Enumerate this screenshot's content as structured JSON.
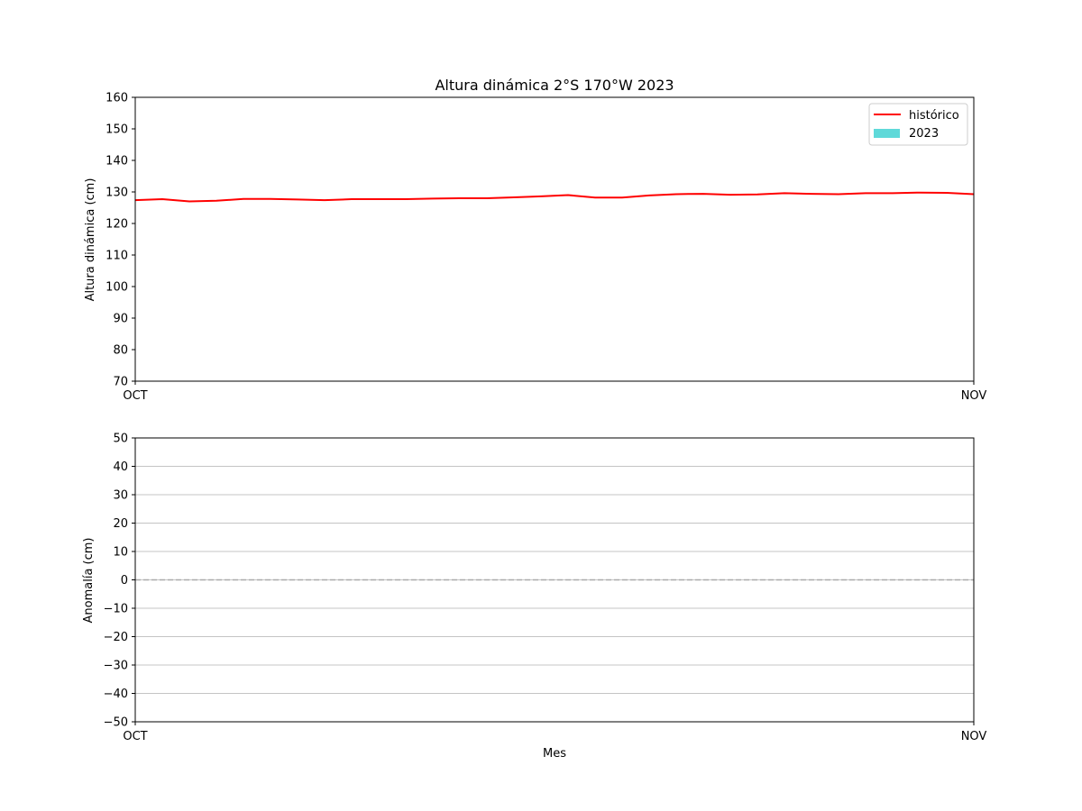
{
  "chart_data": [
    {
      "type": "line",
      "title": "Altura dinámica 2°S 170°W 2023",
      "xlabel": "",
      "ylabel": "Altura dinámica (cm)",
      "xticks": [
        "OCT",
        "NOV"
      ],
      "xlim": [
        0,
        31
      ],
      "ylim": [
        70,
        160
      ],
      "yticks": [
        70,
        80,
        90,
        100,
        110,
        120,
        130,
        140,
        150,
        160
      ],
      "grid": false,
      "legend": {
        "position": "top-right",
        "entries": [
          {
            "label": "histórico",
            "color": "#ff0000",
            "marker": "line"
          },
          {
            "label": "2023",
            "color": "#5fd9d9",
            "marker": "patch"
          }
        ]
      },
      "series": [
        {
          "name": "histórico",
          "color": "#ff0000",
          "x": [
            0,
            1,
            2,
            3,
            4,
            5,
            6,
            7,
            8,
            9,
            10,
            11,
            12,
            13,
            14,
            15,
            16,
            17,
            18,
            19,
            20,
            21,
            22,
            23,
            24,
            25,
            26,
            27,
            28,
            29,
            30,
            31
          ],
          "values": [
            127.4,
            127.7,
            127.0,
            127.2,
            127.8,
            127.8,
            127.6,
            127.4,
            127.7,
            127.7,
            127.7,
            127.9,
            128.0,
            128.0,
            128.3,
            128.6,
            129.0,
            128.2,
            128.2,
            128.9,
            129.3,
            129.4,
            129.1,
            129.2,
            129.6,
            129.4,
            129.3,
            129.6,
            129.6,
            129.8,
            129.7,
            129.3
          ]
        },
        {
          "name": "2023",
          "color": "#5fd9d9",
          "x": [],
          "values": []
        }
      ]
    },
    {
      "type": "line",
      "title": "",
      "xlabel": "Mes",
      "ylabel": "Anomalía (cm)",
      "xticks": [
        "OCT",
        "NOV"
      ],
      "xlim": [
        0,
        31
      ],
      "ylim": [
        -50,
        50
      ],
      "yticks": [
        -50,
        -40,
        -30,
        -20,
        -10,
        0,
        10,
        20,
        30,
        40,
        50
      ],
      "ytick_labels": [
        "−50",
        "−40",
        "−30",
        "−20",
        "−10",
        "0",
        "10",
        "20",
        "30",
        "40",
        "50"
      ],
      "grid": true,
      "reference_line": {
        "y": 0,
        "style": "dashed",
        "color": "#aaaaaa"
      },
      "series": []
    }
  ]
}
